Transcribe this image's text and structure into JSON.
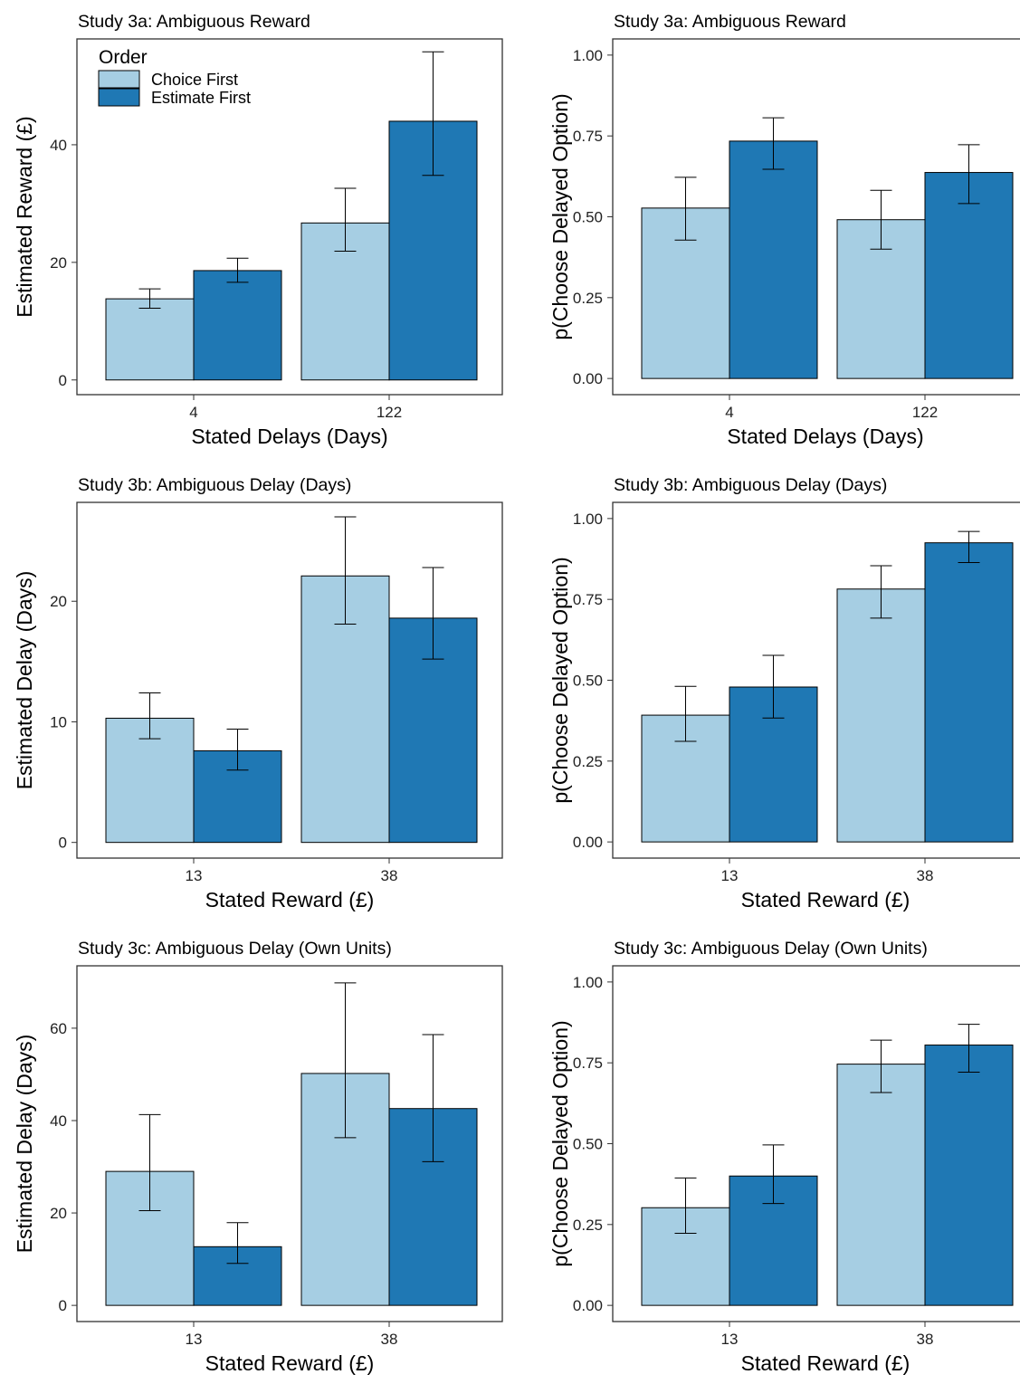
{
  "colors": {
    "choice_first": "#a6cee3",
    "estimate_first": "#1f78b4"
  },
  "legend": {
    "title": "Order",
    "entries": [
      "Choice First",
      "Estimate First"
    ],
    "placement": "top-left"
  },
  "chart_data": [
    {
      "type": "bar",
      "title": "Study 3a: Ambiguous Reward",
      "xlabel": "Stated Delays (Days)",
      "ylabel": "Estimated Reward (£)",
      "categories": [
        "4",
        "122"
      ],
      "ylim": [
        -2.5,
        58
      ],
      "yticks": [
        "0",
        "20",
        "40"
      ],
      "legend": true,
      "series": [
        {
          "name": "Choice First",
          "values": [
            13.8,
            26.7
          ],
          "err_low": [
            12.2,
            21.9
          ],
          "err_high": [
            15.5,
            32.6
          ]
        },
        {
          "name": "Estimate First",
          "values": [
            18.6,
            44.0
          ],
          "err_low": [
            16.6,
            34.8
          ],
          "err_high": [
            20.7,
            55.8
          ]
        }
      ]
    },
    {
      "type": "bar",
      "title": "Study 3a: Ambiguous Reward",
      "xlabel": "Stated Delays (Days)",
      "ylabel": "p(Choose Delayed Option)",
      "categories": [
        "4",
        "122"
      ],
      "ylim": [
        -0.05,
        1.05
      ],
      "yticks": [
        "0.00",
        "0.25",
        "0.50",
        "0.75",
        "1.00"
      ],
      "legend": false,
      "series": [
        {
          "name": "Choice First",
          "values": [
            0.527,
            0.491
          ],
          "err_low": [
            0.428,
            0.4
          ],
          "err_high": [
            0.622,
            0.582
          ]
        },
        {
          "name": "Estimate First",
          "values": [
            0.734,
            0.637
          ],
          "err_low": [
            0.647,
            0.541
          ],
          "err_high": [
            0.806,
            0.723
          ]
        }
      ]
    },
    {
      "type": "bar",
      "title": "Study 3b: Ambiguous Delay (Days)",
      "xlabel": "Stated Reward (£)",
      "ylabel": "Estimated Delay (Days)",
      "categories": [
        "13",
        "38"
      ],
      "ylim": [
        -1.3,
        28.2
      ],
      "yticks": [
        "0",
        "10",
        "20"
      ],
      "legend": false,
      "series": [
        {
          "name": "Choice First",
          "values": [
            10.3,
            22.1
          ],
          "err_low": [
            8.6,
            18.1
          ],
          "err_high": [
            12.4,
            27.0
          ]
        },
        {
          "name": "Estimate First",
          "values": [
            7.6,
            18.6
          ],
          "err_low": [
            6.0,
            15.2
          ],
          "err_high": [
            9.4,
            22.8
          ]
        }
      ]
    },
    {
      "type": "bar",
      "title": "Study 3b: Ambiguous Delay (Days)",
      "xlabel": "Stated Reward (£)",
      "ylabel": "p(Choose Delayed Option)",
      "categories": [
        "13",
        "38"
      ],
      "ylim": [
        -0.05,
        1.05
      ],
      "yticks": [
        "0.00",
        "0.25",
        "0.50",
        "0.75",
        "1.00"
      ],
      "legend": false,
      "series": [
        {
          "name": "Choice First",
          "values": [
            0.392,
            0.782
          ],
          "err_low": [
            0.311,
            0.692
          ],
          "err_high": [
            0.481,
            0.854
          ]
        },
        {
          "name": "Estimate First",
          "values": [
            0.479,
            0.925
          ],
          "err_low": [
            0.383,
            0.864
          ],
          "err_high": [
            0.577,
            0.96
          ]
        }
      ]
    },
    {
      "type": "bar",
      "title": "Study 3c: Ambiguous Delay (Own Units)",
      "xlabel": "Stated Reward (£)",
      "ylabel": "Estimated Delay (Days)",
      "categories": [
        "13",
        "38"
      ],
      "ylim": [
        -3.5,
        73.5
      ],
      "yticks": [
        "0",
        "20",
        "40",
        "60"
      ],
      "legend": false,
      "series": [
        {
          "name": "Choice First",
          "values": [
            29.0,
            50.2
          ],
          "err_low": [
            20.5,
            36.3
          ],
          "err_high": [
            41.3,
            69.8
          ]
        },
        {
          "name": "Estimate First",
          "values": [
            12.7,
            42.6
          ],
          "err_low": [
            9.1,
            31.1
          ],
          "err_high": [
            17.9,
            58.6
          ]
        }
      ]
    },
    {
      "type": "bar",
      "title": "Study 3c: Ambiguous Delay (Own Units)",
      "xlabel": "Stated Reward (£)",
      "ylabel": "p(Choose Delayed Option)",
      "categories": [
        "13",
        "38"
      ],
      "ylim": [
        -0.05,
        1.05
      ],
      "yticks": [
        "0.00",
        "0.25",
        "0.50",
        "0.75",
        "1.00"
      ],
      "legend": false,
      "series": [
        {
          "name": "Choice First",
          "values": [
            0.302,
            0.746
          ],
          "err_low": [
            0.223,
            0.658
          ],
          "err_high": [
            0.394,
            0.82
          ]
        },
        {
          "name": "Estimate First",
          "values": [
            0.4,
            0.805
          ],
          "err_low": [
            0.315,
            0.721
          ],
          "err_high": [
            0.496,
            0.869
          ]
        }
      ]
    }
  ]
}
